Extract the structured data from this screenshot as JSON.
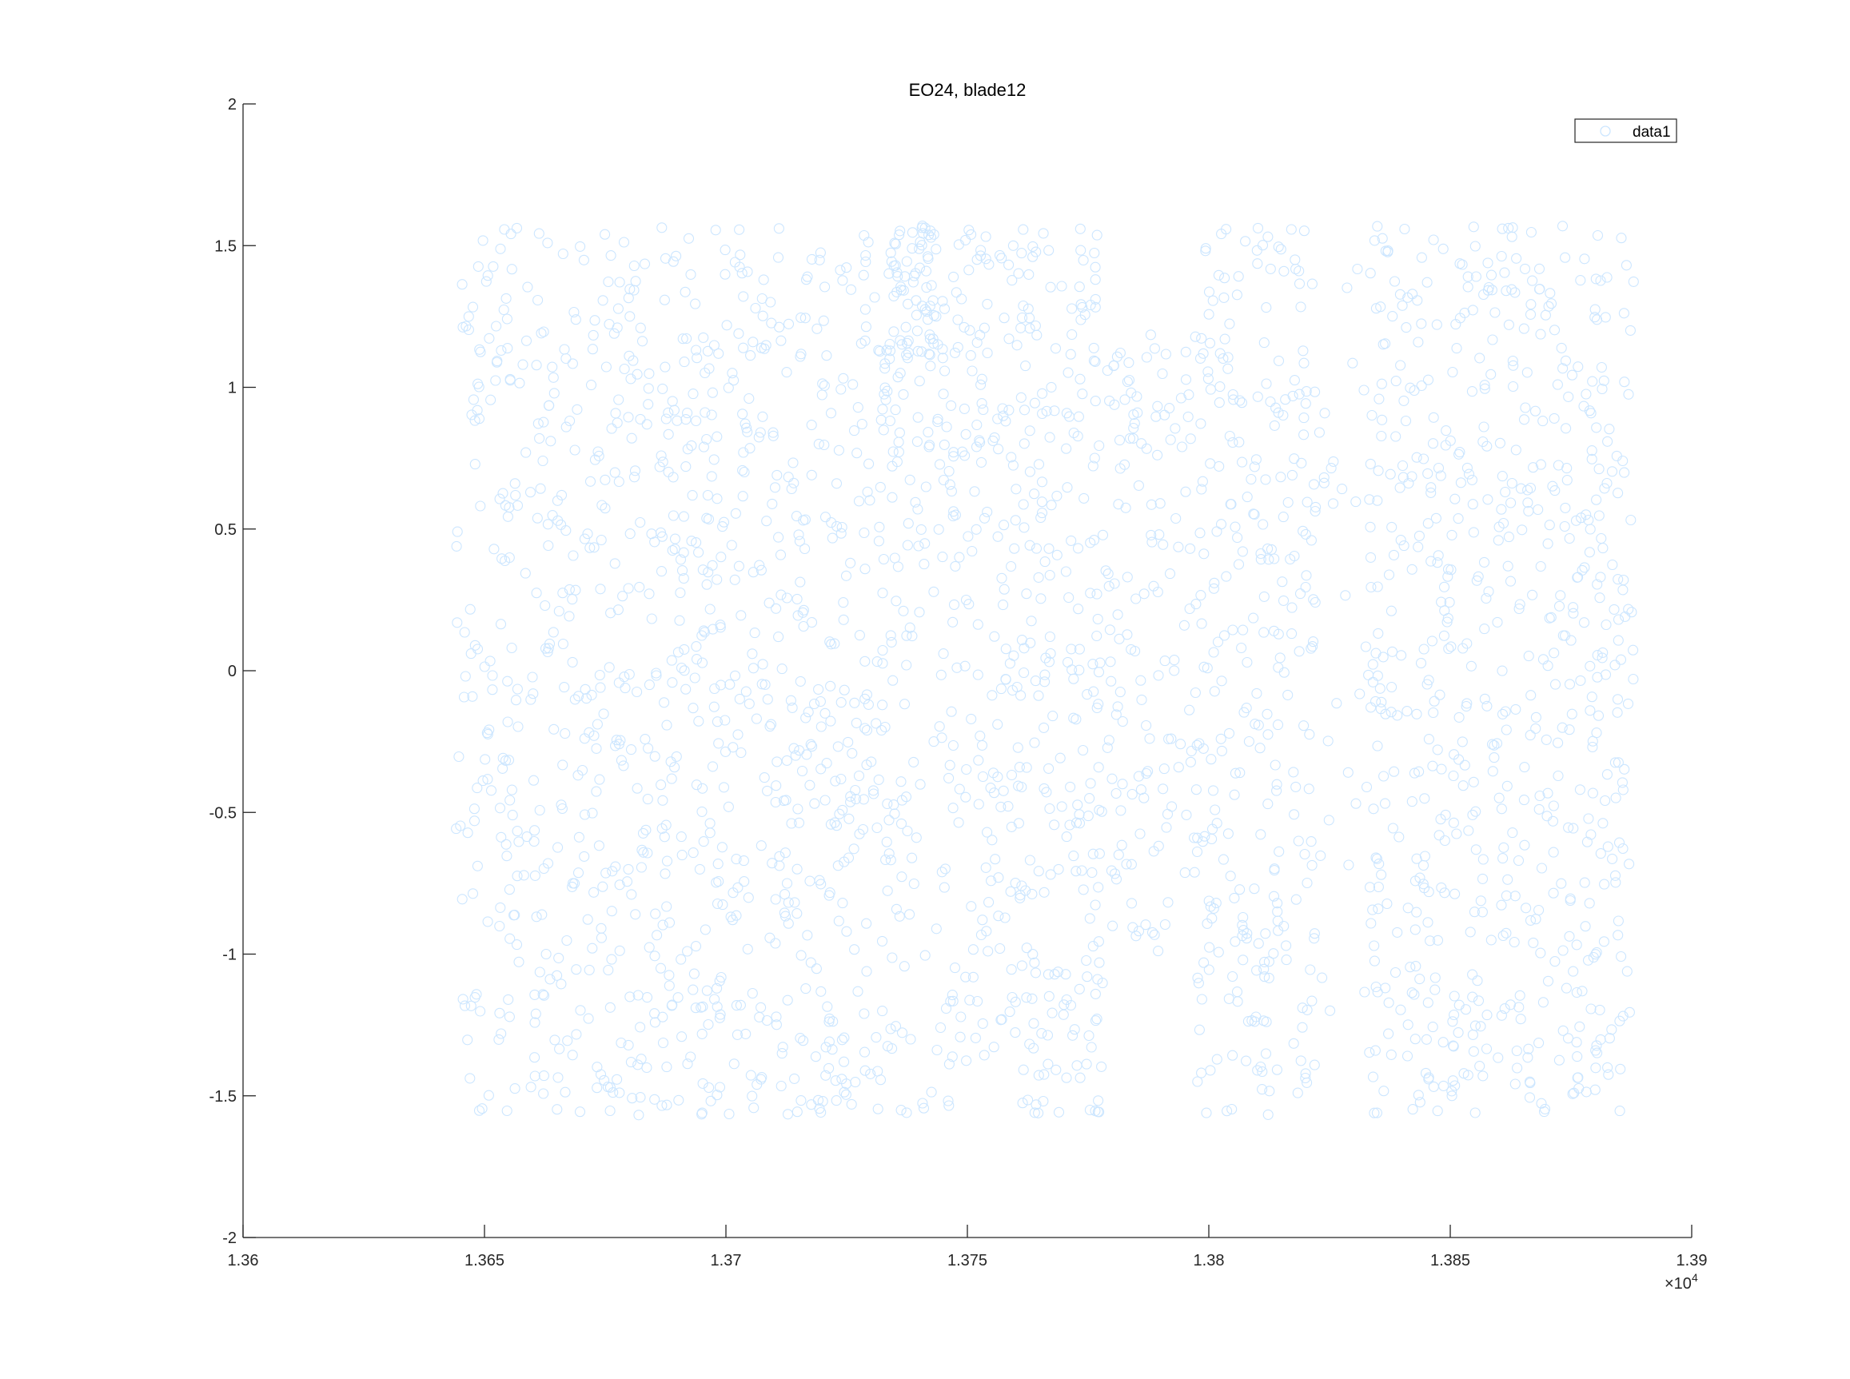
{
  "chart_data": {
    "type": "scatter",
    "title": "EO24, blade12",
    "xlabel": "",
    "ylabel": "",
    "xlim": [
      13600,
      13900
    ],
    "ylim": [
      -2,
      2
    ],
    "x_ticks": [
      13600,
      13650,
      13700,
      13750,
      13800,
      13850,
      13900
    ],
    "x_tick_labels": [
      "1.36",
      "1.365",
      "1.37",
      "1.375",
      "1.38",
      "1.385",
      "1.39"
    ],
    "x_exponent": {
      "base": "×10",
      "power": "4"
    },
    "y_ticks": [
      -2,
      -1.5,
      -1,
      -0.5,
      0,
      0.5,
      1,
      1.5,
      2
    ],
    "y_tick_labels": [
      "-2",
      "-1.5",
      "-1",
      "-0.5",
      "0",
      "0.5",
      "1",
      "1.5",
      "2"
    ],
    "grid": false,
    "legend": {
      "position": "top-right",
      "entries": [
        "data1"
      ]
    },
    "marker": "open-circle",
    "series": [
      {
        "name": "data1",
        "color": "#cce6ff",
        "x_range": [
          13644,
          13888
        ],
        "y_range": [
          -1.57,
          1.57
        ],
        "density_profile": [
          {
            "x": [
              13644,
              13660
            ],
            "weight": 1.0,
            "y_range": [
              -1.57,
              1.57
            ]
          },
          {
            "x": [
              13660,
              13690
            ],
            "weight": 1.2,
            "y_range": [
              -1.57,
              1.57
            ]
          },
          {
            "x": [
              13690,
              13737
            ],
            "weight": 1.3,
            "y_range": [
              -1.57,
              1.57
            ]
          },
          {
            "x": [
              13737,
              13744
            ],
            "weight": 0.9,
            "y_range": [
              -1.57,
              1.57
            ]
          },
          {
            "x": [
              13734,
              13744
            ],
            "weight": 0.6,
            "y_range": [
              1.1,
              1.57
            ]
          },
          {
            "x": [
              13744,
              13778
            ],
            "weight": 1.4,
            "y_range": [
              -1.57,
              1.57
            ]
          },
          {
            "x": [
              13778,
              13797
            ],
            "weight": 0.8,
            "y_range": [
              -1.0,
              1.2
            ]
          },
          {
            "x": [
              13797,
              13822
            ],
            "weight": 1.3,
            "y_range": [
              -1.57,
              1.57
            ]
          },
          {
            "x": [
              13822,
              13833
            ],
            "weight": 0.3,
            "y_range": [
              -1.3,
              1.57
            ]
          },
          {
            "x": [
              13833,
              13888
            ],
            "weight": 1.3,
            "y_range": [
              -1.57,
              1.57
            ]
          }
        ]
      }
    ]
  }
}
